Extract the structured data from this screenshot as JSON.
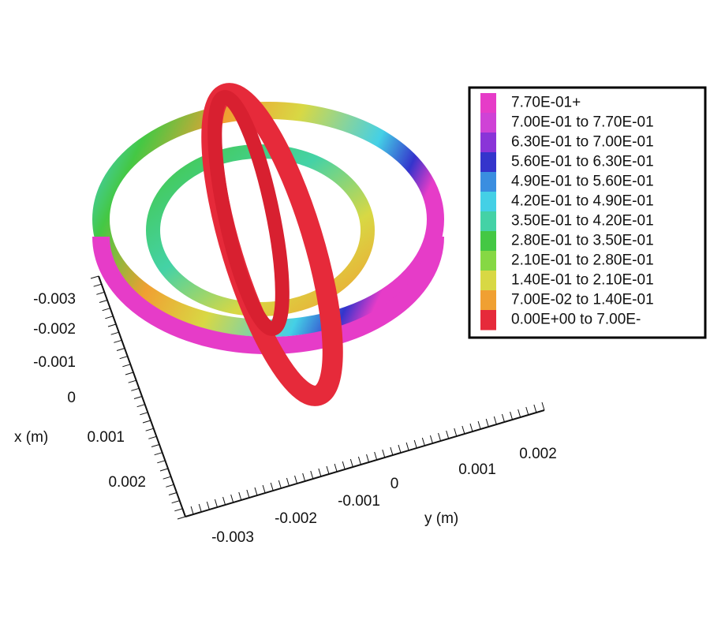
{
  "axes": {
    "x": {
      "label": "x (m)",
      "ticks": [
        -0.003,
        -0.002,
        -0.001,
        0,
        0.001,
        0.002
      ]
    },
    "y": {
      "label": "y (m)",
      "ticks": [
        -0.003,
        -0.002,
        -0.001,
        0,
        0.001,
        0.002
      ]
    }
  },
  "legend": {
    "entries": [
      {
        "label": "7.70E-01+",
        "color": "#e63cc8"
      },
      {
        "label": "7.00E-01 to 7.70E-01",
        "color": "#cf42d6"
      },
      {
        "label": "6.30E-01 to 7.00E-01",
        "color": "#8a34d8"
      },
      {
        "label": "5.60E-01 to 6.30E-01",
        "color": "#3434cc"
      },
      {
        "label": "4.90E-01 to 5.60E-01",
        "color": "#3a8ee0"
      },
      {
        "label": "4.20E-01 to 4.90E-01",
        "color": "#44d0e6"
      },
      {
        "label": "3.50E-01 to 4.20E-01",
        "color": "#44d2a6"
      },
      {
        "label": "2.80E-01 to 3.50E-01",
        "color": "#44c844"
      },
      {
        "label": "2.10E-01 to 2.80E-01",
        "color": "#86d844"
      },
      {
        "label": "1.40E-01 to 2.10E-01",
        "color": "#d8d844"
      },
      {
        "label": "7.00E-02 to 1.40E-01",
        "color": "#f0a032"
      },
      {
        "label": "0.00E+00 to 7.00E-",
        "color": "#e62a3a"
      }
    ]
  }
}
